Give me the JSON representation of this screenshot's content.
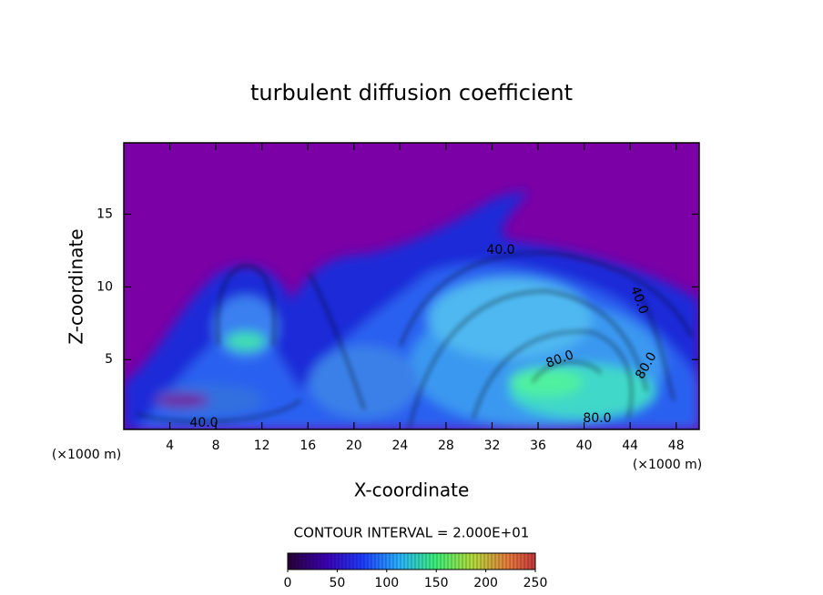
{
  "chart_data": {
    "type": "contour",
    "title": "turbulent diffusion coefficient",
    "x_label": "X-coordinate",
    "y_label": "Z-coordinate",
    "x_unit_label": "(×1000 m)",
    "y_unit_label": "(×1000 m)",
    "xlim": [
      0,
      50
    ],
    "xticks": [
      4,
      8,
      12,
      16,
      20,
      24,
      28,
      32,
      36,
      40,
      44,
      48
    ],
    "ylim": [
      0.2,
      19.9
    ],
    "yticks": [
      5,
      10,
      15
    ],
    "contour_interval_label": "CONTOUR INTERVAL = 2.000E+01",
    "contour_labels": [
      "40.0",
      "40.0",
      "80.0",
      "80.0",
      "80.0",
      "40.0"
    ],
    "colorbar": {
      "lim": [
        0,
        250
      ],
      "ticks": [
        0,
        50,
        100,
        150,
        200,
        250
      ]
    }
  }
}
